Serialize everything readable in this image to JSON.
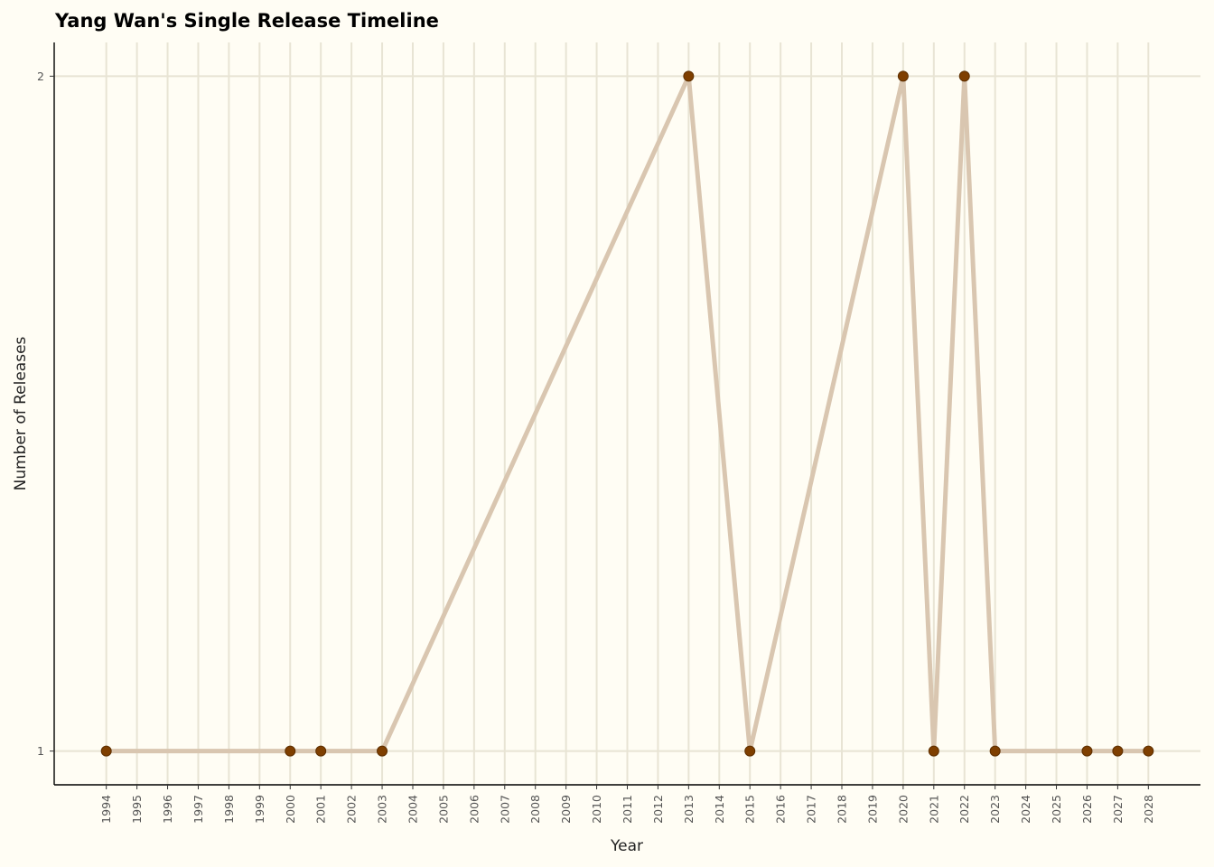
{
  "chart_data": {
    "type": "line",
    "title": "Yang Wan's Single Release Timeline",
    "xlabel": "Year",
    "ylabel": "Number of Releases",
    "x_ticks": [
      "1994",
      "1995",
      "1996",
      "1997",
      "1998",
      "1999",
      "2000",
      "2001",
      "2002",
      "2003",
      "2004",
      "2005",
      "2006",
      "2007",
      "2008",
      "2009",
      "2010",
      "2011",
      "2012",
      "2013",
      "2014",
      "2015",
      "2016",
      "2017",
      "2018",
      "2019",
      "2020",
      "2021",
      "2022",
      "2023",
      "2024",
      "2025",
      "2026",
      "2027",
      "2028"
    ],
    "y_ticks": [
      "1",
      "2"
    ],
    "xlim": [
      1992.3,
      2029.7
    ],
    "ylim": [
      0.95,
      2.05
    ],
    "grid": true,
    "legend": "none",
    "series": [
      {
        "x": [
          1994,
          2000,
          2001,
          2003,
          2013,
          2015,
          2020,
          2021,
          2022,
          2023,
          2026,
          2027,
          2028
        ],
        "y": [
          1,
          1,
          1,
          1,
          2,
          1,
          2,
          1,
          2,
          1,
          1,
          1,
          1
        ],
        "line_color": "#d9c6b0",
        "marker_color": "#7f3f00"
      }
    ],
    "background_color": "#fffdf4",
    "grid_color": "#e8e4d4"
  }
}
